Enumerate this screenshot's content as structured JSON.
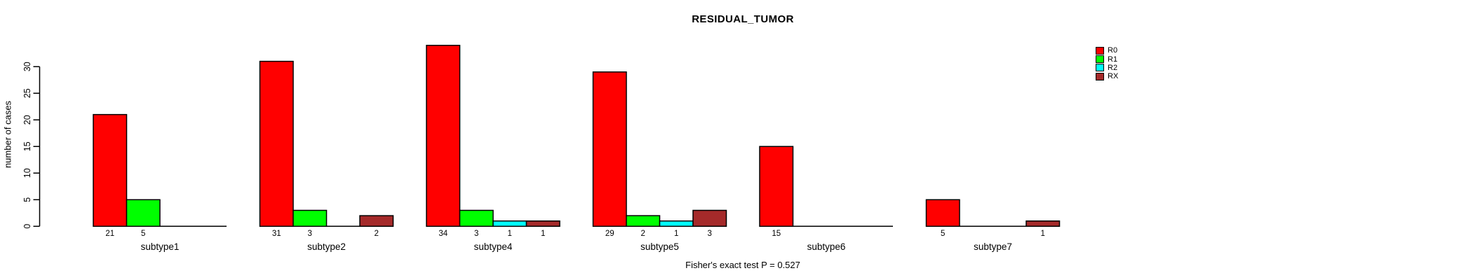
{
  "title": "RESIDUAL_TUMOR",
  "y_axis_title": "number of cases",
  "footer": "Fisher's exact test P = 0.527",
  "legend": [
    {
      "label": "R0",
      "color": "#ff0000"
    },
    {
      "label": "R1",
      "color": "#00ff00"
    },
    {
      "label": "R2",
      "color": "#00ffff"
    },
    {
      "label": "RX",
      "color": "#a52a2a"
    }
  ],
  "chart_data": {
    "type": "bar",
    "title": "RESIDUAL_TUMOR",
    "xlabel": "",
    "ylabel": "number of cases",
    "categories": [
      "subtype1",
      "subtype2",
      "subtype4",
      "subtype5",
      "subtype6",
      "subtype7"
    ],
    "series": [
      {
        "name": "R0",
        "color": "#ff0000",
        "values": [
          21,
          31,
          34,
          29,
          15,
          5
        ]
      },
      {
        "name": "R1",
        "color": "#00ff00",
        "values": [
          5,
          3,
          3,
          2,
          0,
          0
        ]
      },
      {
        "name": "R2",
        "color": "#00ffff",
        "values": [
          0,
          0,
          1,
          1,
          0,
          0
        ]
      },
      {
        "name": "RX",
        "color": "#a52a2a",
        "values": [
          0,
          2,
          1,
          3,
          0,
          1
        ]
      }
    ],
    "bar_value_labels_shown": "only non-zero values, printed under each bar",
    "yticks": [
      0,
      5,
      10,
      15,
      20,
      25,
      30
    ],
    "ylim": [
      0,
      34
    ],
    "grid": false,
    "legend_position": "right, outside plot",
    "annotation": "Fisher's exact test P = 0.527"
  }
}
